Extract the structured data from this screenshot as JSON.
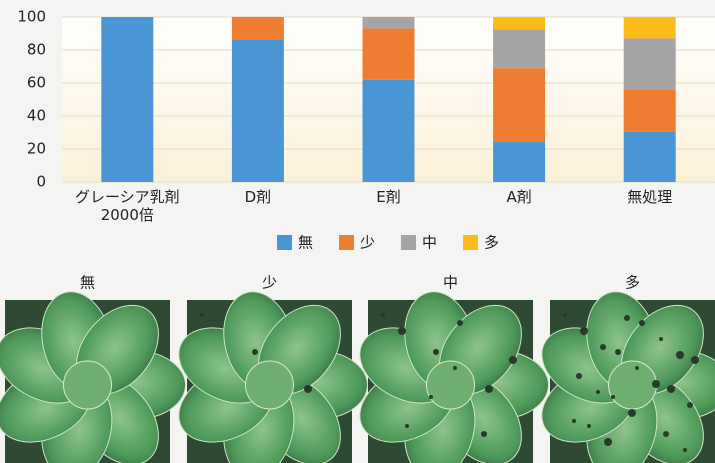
{
  "chart_data": {
    "type": "stacked_bar",
    "categories": [
      "グレーシア乳剤\n2000倍",
      "D剤",
      "E剤",
      "A剤",
      "無処理"
    ],
    "series": [
      {
        "name": "無",
        "color": "#4a96d4",
        "values": [
          100,
          86.5,
          62,
          24.5,
          30.5
        ]
      },
      {
        "name": "少",
        "color": "#ee7d31",
        "values": [
          0,
          13.5,
          31,
          44.5,
          25.5
        ]
      },
      {
        "name": "中",
        "color": "#a5a5a5",
        "values": [
          0,
          0,
          7,
          23.5,
          31
        ]
      },
      {
        "name": "多",
        "color": "#fbbb1a",
        "values": [
          0,
          0,
          0,
          7.5,
          13
        ]
      }
    ],
    "ylim": [
      0,
      100
    ],
    "yticks": [
      0,
      20,
      40,
      60,
      80,
      100
    ],
    "grid": true
  },
  "photos": [
    "無",
    "少",
    "中",
    "多"
  ]
}
